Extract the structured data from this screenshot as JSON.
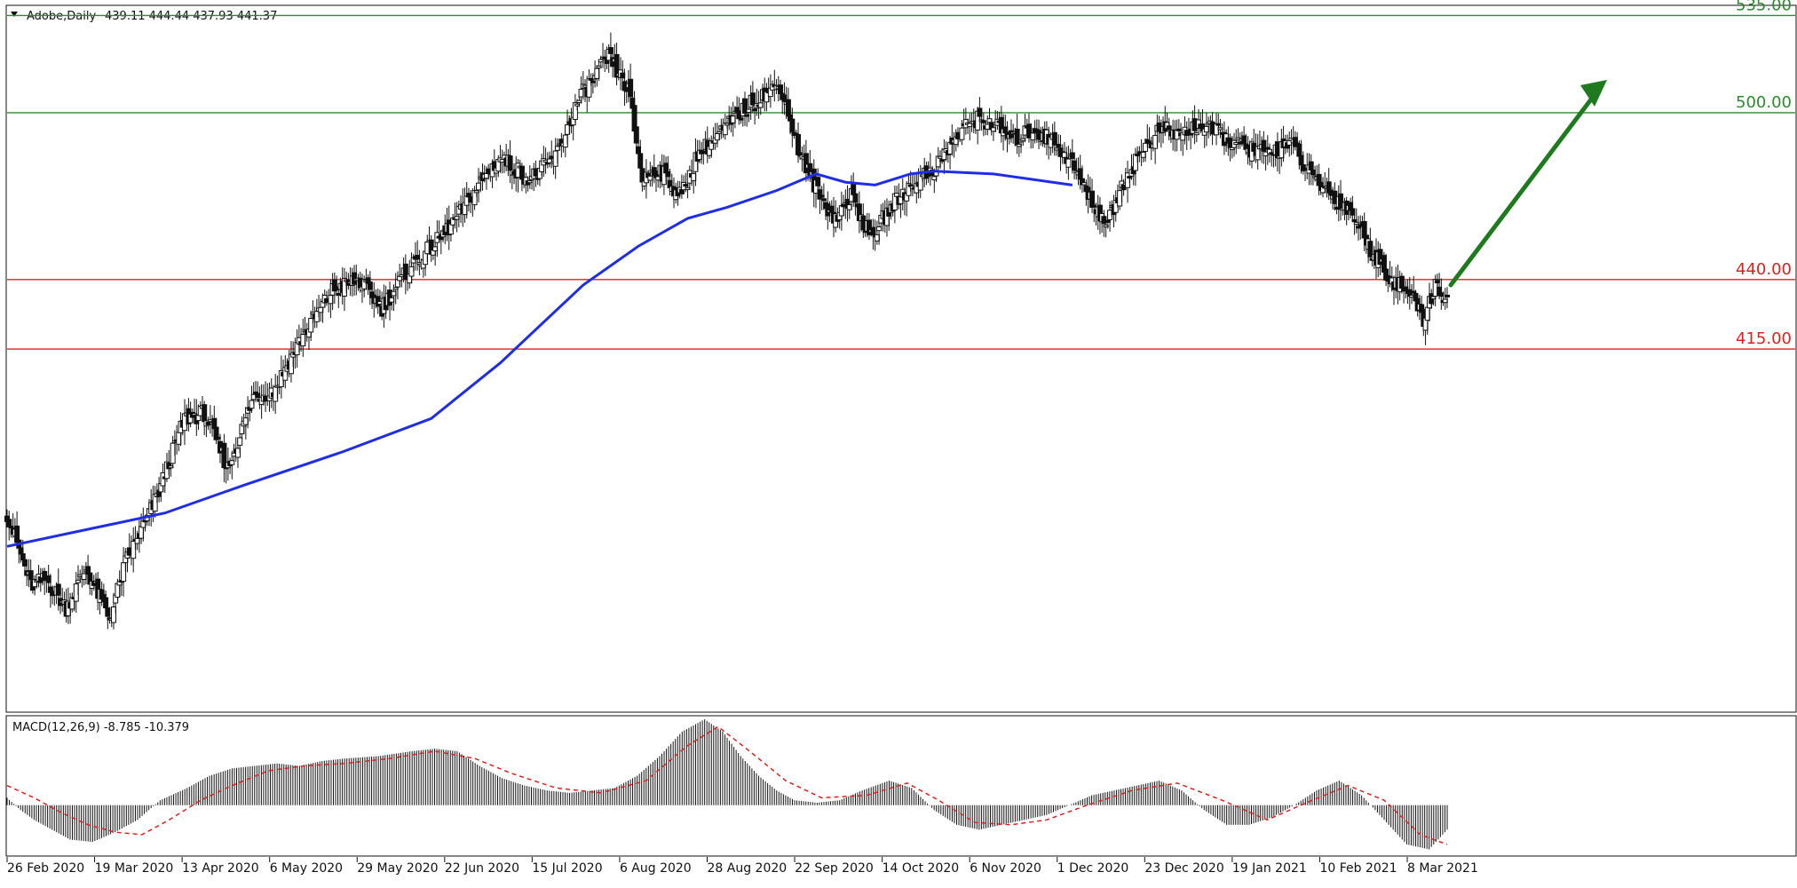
{
  "chart_data": [
    {
      "type": "candlestick",
      "instrument_label": "Adobe,Daily",
      "ohlc_label": "439.11 444.44 437.93 441.37",
      "price_range": [
        285,
        538
      ],
      "x_axis_labels": [
        "26 Feb 2020",
        "19 Mar 2020",
        "13 Apr 2020",
        "6 May 2020",
        "29 May 2020",
        "22 Jun 2020",
        "15 Jul 2020",
        "6 Aug 2020",
        "28 Aug 2020",
        "22 Sep 2020",
        "14 Oct 2020",
        "6 Nov 2020",
        "1 Dec 2020",
        "23 Dec 2020",
        "19 Jan 2021",
        "10 Feb 2021",
        "8 Mar 2021"
      ],
      "levels": [
        {
          "value": 535,
          "label": "535.00",
          "color": "#2d8a2d"
        },
        {
          "value": 500,
          "label": "500.00",
          "color": "#2d8a2d"
        },
        {
          "value": 440,
          "label": "440.00",
          "color": "#e02020"
        },
        {
          "value": 415,
          "label": "415.00",
          "color": "#e02020"
        }
      ],
      "moving_average_color": "#1f2ee6",
      "forecast_arrow_color": "#1f7a1f",
      "candle_price_path": [
        [
          0,
          356
        ],
        [
          12,
          330
        ],
        [
          20,
          332
        ],
        [
          30,
          322
        ],
        [
          40,
          336
        ],
        [
          52,
          318
        ],
        [
          60,
          338
        ],
        [
          75,
          360
        ],
        [
          90,
          390
        ],
        [
          100,
          392
        ],
        [
          112,
          372
        ],
        [
          125,
          398
        ],
        [
          135,
          400
        ],
        [
          150,
          420
        ],
        [
          165,
          436
        ],
        [
          178,
          440
        ],
        [
          190,
          430
        ],
        [
          205,
          445
        ],
        [
          220,
          455
        ],
        [
          232,
          466
        ],
        [
          240,
          475
        ],
        [
          250,
          484
        ],
        [
          265,
          476
        ],
        [
          278,
          484
        ],
        [
          290,
          505
        ],
        [
          305,
          520
        ],
        [
          315,
          508
        ],
        [
          322,
          476
        ],
        [
          330,
          480
        ],
        [
          342,
          470
        ],
        [
          350,
          485
        ],
        [
          358,
          490
        ],
        [
          372,
          500
        ],
        [
          380,
          505
        ],
        [
          392,
          510
        ],
        [
          402,
          485
        ],
        [
          412,
          470
        ],
        [
          420,
          462
        ],
        [
          428,
          470
        ],
        [
          438,
          455
        ],
        [
          450,
          468
        ],
        [
          460,
          475
        ],
        [
          470,
          480
        ],
        [
          480,
          490
        ],
        [
          490,
          498
        ],
        [
          500,
          496
        ],
        [
          510,
          490
        ],
        [
          520,
          494
        ],
        [
          530,
          490
        ],
        [
          540,
          482
        ],
        [
          548,
          470
        ],
        [
          558,
          460
        ],
        [
          565,
          474
        ],
        [
          575,
          486
        ],
        [
          585,
          494
        ],
        [
          595,
          492
        ],
        [
          605,
          496
        ],
        [
          615,
          492
        ],
        [
          625,
          488
        ],
        [
          640,
          485
        ],
        [
          650,
          490
        ],
        [
          660,
          478
        ],
        [
          672,
          470
        ],
        [
          682,
          464
        ],
        [
          692,
          450
        ],
        [
          702,
          440
        ],
        [
          712,
          434
        ],
        [
          718,
          426
        ],
        [
          724,
          438
        ],
        [
          730,
          432
        ]
      ],
      "series": [
        {
          "name": "MA",
          "points": [
            [
              0,
              344
            ],
            [
              40,
              350
            ],
            [
              80,
              356
            ],
            [
              120,
              366
            ],
            [
              170,
              378
            ],
            [
              215,
              390
            ],
            [
              250,
              410
            ],
            [
              292,
              438
            ],
            [
              320,
              452
            ],
            [
              345,
              462
            ],
            [
              365,
              466
            ],
            [
              390,
              472
            ],
            [
              410,
              478
            ],
            [
              425,
              475
            ],
            [
              440,
              474
            ],
            [
              458,
              478
            ],
            [
              470,
              479
            ],
            [
              500,
              478
            ],
            [
              540,
              474
            ]
          ]
        }
      ]
    },
    {
      "type": "bar",
      "indicator_label": "MACD(12,26,9) -8.785 -10.379",
      "value_range": [
        -20,
        35
      ],
      "macd_path": [
        [
          0,
          3
        ],
        [
          6,
          -2
        ],
        [
          12,
          -6
        ],
        [
          20,
          -10
        ],
        [
          28,
          -14
        ],
        [
          38,
          -15
        ],
        [
          48,
          -11
        ],
        [
          58,
          -6
        ],
        [
          68,
          2
        ],
        [
          80,
          7
        ],
        [
          90,
          12
        ],
        [
          100,
          15
        ],
        [
          110,
          16
        ],
        [
          120,
          17
        ],
        [
          130,
          16
        ],
        [
          140,
          18
        ],
        [
          150,
          19
        ],
        [
          165,
          20
        ],
        [
          180,
          22
        ],
        [
          190,
          23
        ],
        [
          200,
          22
        ],
        [
          210,
          16
        ],
        [
          220,
          11
        ],
        [
          230,
          8
        ],
        [
          240,
          6
        ],
        [
          250,
          5
        ],
        [
          260,
          6
        ],
        [
          270,
          7
        ],
        [
          280,
          12
        ],
        [
          290,
          20
        ],
        [
          300,
          30
        ],
        [
          310,
          35
        ],
        [
          318,
          30
        ],
        [
          326,
          20
        ],
        [
          334,
          12
        ],
        [
          342,
          6
        ],
        [
          350,
          2
        ],
        [
          360,
          1
        ],
        [
          370,
          2
        ],
        [
          380,
          6
        ],
        [
          392,
          10
        ],
        [
          402,
          7
        ],
        [
          412,
          -2
        ],
        [
          422,
          -8
        ],
        [
          432,
          -10
        ],
        [
          442,
          -8
        ],
        [
          452,
          -6
        ],
        [
          462,
          -4
        ],
        [
          472,
          0
        ],
        [
          482,
          4
        ],
        [
          492,
          6
        ],
        [
          502,
          8
        ],
        [
          512,
          10
        ],
        [
          522,
          6
        ],
        [
          532,
          -2
        ],
        [
          542,
          -8
        ],
        [
          552,
          -8
        ],
        [
          562,
          -5
        ],
        [
          572,
          0
        ],
        [
          582,
          6
        ],
        [
          592,
          10
        ],
        [
          602,
          4
        ],
        [
          612,
          -6
        ],
        [
          622,
          -16
        ],
        [
          632,
          -18
        ],
        [
          640,
          -10
        ]
      ],
      "signal_path": [
        [
          0,
          8
        ],
        [
          12,
          3
        ],
        [
          24,
          -3
        ],
        [
          36,
          -8
        ],
        [
          48,
          -11
        ],
        [
          60,
          -12
        ],
        [
          72,
          -6
        ],
        [
          86,
          2
        ],
        [
          100,
          8
        ],
        [
          116,
          14
        ],
        [
          132,
          16
        ],
        [
          150,
          17
        ],
        [
          170,
          19
        ],
        [
          190,
          22
        ],
        [
          208,
          19
        ],
        [
          224,
          13
        ],
        [
          244,
          7
        ],
        [
          264,
          5
        ],
        [
          284,
          10
        ],
        [
          302,
          24
        ],
        [
          316,
          32
        ],
        [
          330,
          22
        ],
        [
          346,
          10
        ],
        [
          362,
          3
        ],
        [
          382,
          4
        ],
        [
          400,
          9
        ],
        [
          414,
          2
        ],
        [
          430,
          -7
        ],
        [
          446,
          -8
        ],
        [
          462,
          -6
        ],
        [
          480,
          0
        ],
        [
          500,
          6
        ],
        [
          520,
          9
        ],
        [
          540,
          2
        ],
        [
          560,
          -6
        ],
        [
          580,
          2
        ],
        [
          596,
          8
        ],
        [
          612,
          2
        ],
        [
          628,
          -12
        ],
        [
          640,
          -16
        ]
      ],
      "signal_color": "#e02020"
    }
  ]
}
